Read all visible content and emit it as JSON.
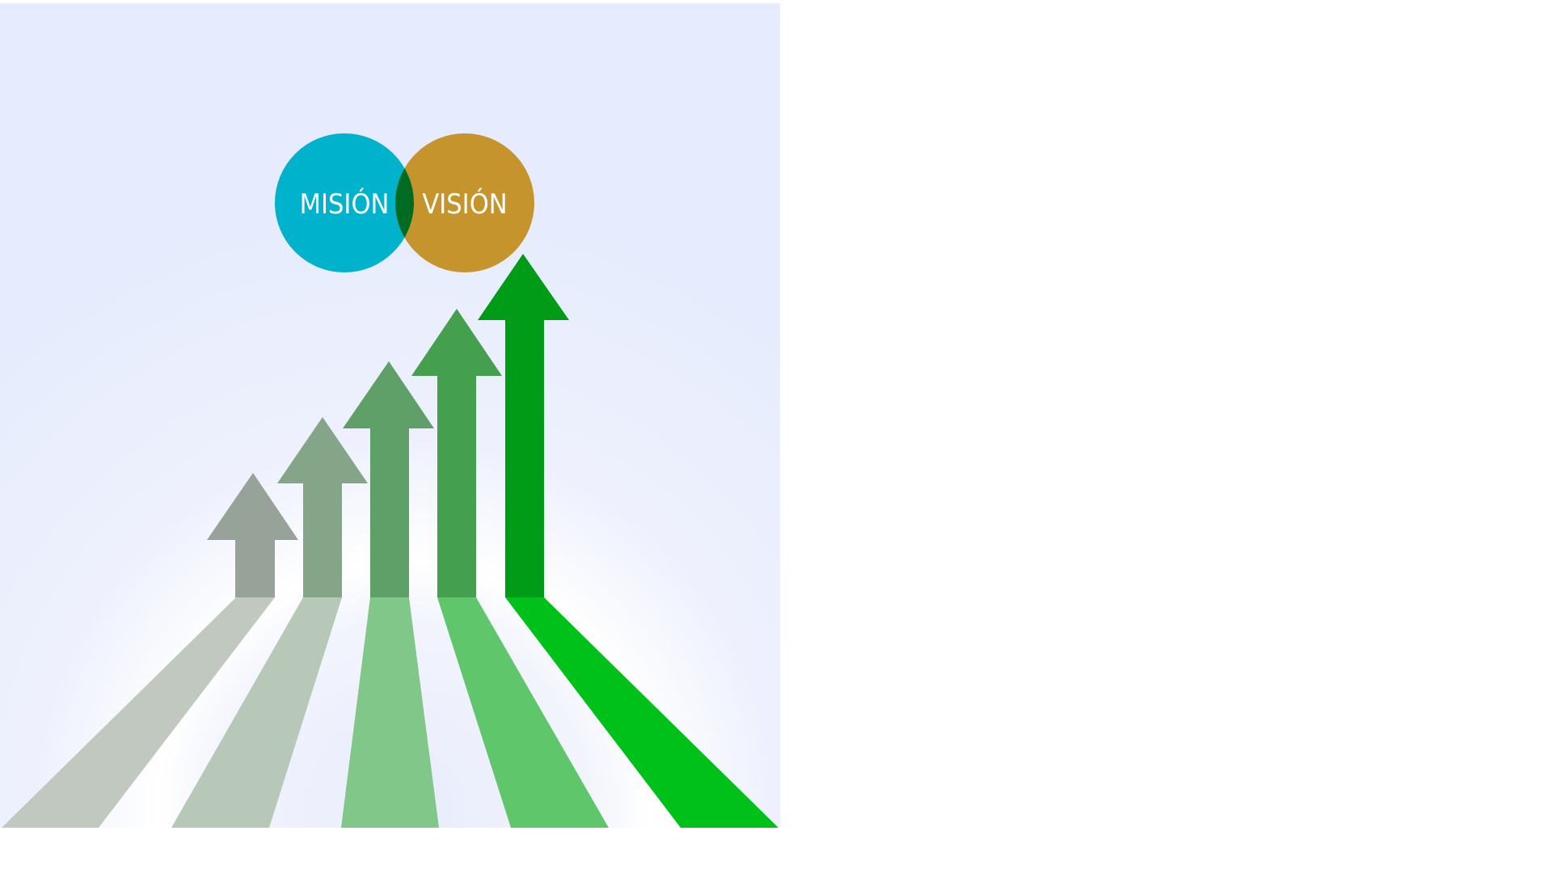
{
  "venn": {
    "left_label": "MISIÓN",
    "right_label": "VISIÓN",
    "left_color": "#00b2cc",
    "right_color": "#c5942c",
    "overlap_color": "#006b22"
  },
  "arrows": {
    "count": 5,
    "colors": [
      "#97a398",
      "#85a588",
      "#5ea067",
      "#44a04f",
      "#009c17"
    ],
    "road_colors": [
      "#c1c8bf",
      "#b8c8b8",
      "#82c78a",
      "#60c66c",
      "#00c11a"
    ]
  },
  "background": {
    "top_color": "#e6ecfd",
    "mid_color": "#ffffff"
  }
}
